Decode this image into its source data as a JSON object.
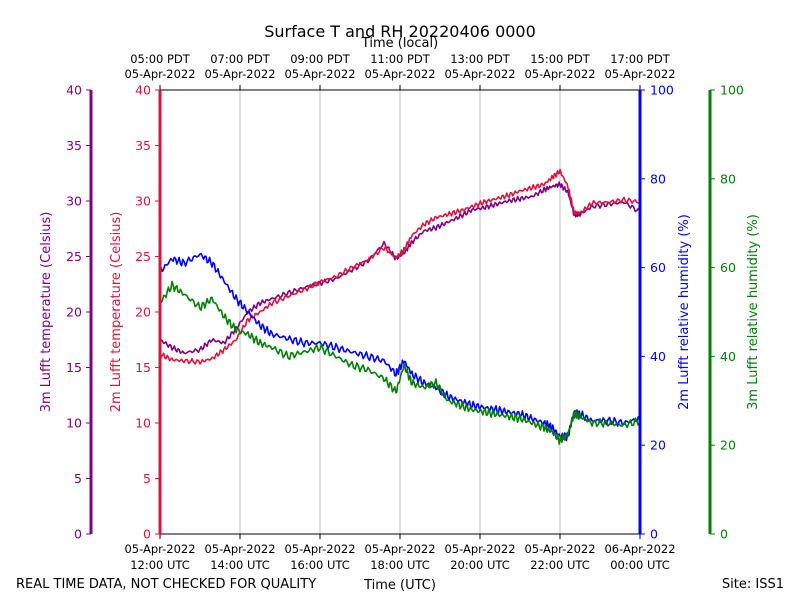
{
  "chart_data": {
    "type": "line",
    "title": "Surface T and RH 20220406 0000",
    "top_xlabel": "Time (local)",
    "bottom_xlabel": "Time (UTC)",
    "footer_left": "REAL TIME DATA, NOT CHECKED FOR QUALITY",
    "footer_right": "Site: ISS1",
    "x_hours_utc": [
      12,
      24
    ],
    "bottom_ticks": [
      {
        "h": 12,
        "date": "05-Apr-2022",
        "time": "12:00 UTC"
      },
      {
        "h": 14,
        "date": "05-Apr-2022",
        "time": "14:00 UTC"
      },
      {
        "h": 16,
        "date": "05-Apr-2022",
        "time": "16:00 UTC"
      },
      {
        "h": 18,
        "date": "05-Apr-2022",
        "time": "18:00 UTC"
      },
      {
        "h": 20,
        "date": "05-Apr-2022",
        "time": "20:00 UTC"
      },
      {
        "h": 22,
        "date": "05-Apr-2022",
        "time": "22:00 UTC"
      },
      {
        "h": 24,
        "date": "06-Apr-2022",
        "time": "00:00 UTC"
      }
    ],
    "top_ticks": [
      {
        "h": 12,
        "time": "05:00 PDT",
        "date": "05-Apr-2022"
      },
      {
        "h": 14,
        "time": "07:00 PDT",
        "date": "05-Apr-2022"
      },
      {
        "h": 16,
        "time": "09:00 PDT",
        "date": "05-Apr-2022"
      },
      {
        "h": 18,
        "time": "11:00 PDT",
        "date": "05-Apr-2022"
      },
      {
        "h": 20,
        "time": "13:00 PDT",
        "date": "05-Apr-2022"
      },
      {
        "h": 22,
        "time": "15:00 PDT",
        "date": "05-Apr-2022"
      },
      {
        "h": 24,
        "time": "17:00 PDT",
        "date": "05-Apr-2022"
      }
    ],
    "axes": {
      "t3m": {
        "label": "3m Lufft temperature (Celsius)",
        "color": "#800080",
        "ylim": [
          0,
          40
        ],
        "ticks": [
          "0",
          "5",
          "10",
          "15",
          "20",
          "25",
          "30",
          "35",
          "40"
        ]
      },
      "t2m": {
        "label": "2m Lufft temperature (Celsius)",
        "color": "#dc143c",
        "ylim": [
          0,
          40
        ],
        "ticks": [
          "0",
          "5",
          "10",
          "15",
          "20",
          "25",
          "30",
          "35",
          "40"
        ]
      },
      "rh2m": {
        "label": "2m Lufft relative humidity (%)",
        "color": "#0000ff",
        "ylim": [
          0,
          100
        ],
        "ticks": [
          "0",
          "20",
          "40",
          "60",
          "80",
          "100"
        ]
      },
      "rh3m": {
        "label": "3m Lufft relative humidity (%)",
        "color": "#008000",
        "ylim": [
          0,
          100
        ],
        "ticks": [
          "0",
          "20",
          "40",
          "60",
          "80",
          "100"
        ]
      }
    },
    "series": [
      {
        "name": "3m Lufft temperature",
        "axis": "t3m",
        "color": "#800080",
        "x": [
          12.0,
          12.3,
          12.6,
          13.0,
          13.3,
          13.6,
          13.9,
          14.2,
          14.5,
          14.8,
          15.2,
          15.6,
          16.0,
          16.4,
          16.8,
          17.2,
          17.6,
          17.9,
          18.1,
          18.3,
          18.6,
          18.9,
          19.2,
          19.5,
          19.8,
          20.1,
          20.4,
          20.7,
          21.0,
          21.3,
          21.6,
          21.8,
          22.0,
          22.2,
          22.35,
          22.5,
          22.8,
          23.2,
          23.6,
          24.0
        ],
        "values": [
          17.5,
          16.8,
          16.3,
          16.6,
          17.5,
          17.2,
          18.5,
          20.0,
          20.8,
          21.2,
          21.7,
          22.2,
          22.6,
          23.0,
          23.8,
          24.6,
          26.2,
          24.8,
          25.3,
          26.3,
          27.3,
          27.6,
          28.1,
          28.6,
          29.2,
          29.4,
          29.7,
          30.0,
          30.2,
          30.4,
          31.0,
          31.3,
          31.5,
          30.8,
          28.8,
          28.8,
          29.5,
          29.7,
          29.9,
          29.0
        ]
      },
      {
        "name": "2m Lufft temperature",
        "axis": "t2m",
        "color": "#dc143c",
        "x": [
          12.0,
          12.3,
          12.6,
          13.0,
          13.3,
          13.6,
          13.9,
          14.2,
          14.5,
          14.8,
          15.2,
          15.6,
          16.0,
          16.4,
          16.8,
          17.2,
          17.6,
          17.9,
          18.1,
          18.3,
          18.6,
          18.9,
          19.2,
          19.5,
          19.8,
          20.1,
          20.4,
          20.7,
          21.0,
          21.3,
          21.6,
          21.8,
          22.0,
          22.2,
          22.35,
          22.5,
          22.8,
          23.2,
          23.6,
          24.0
        ],
        "values": [
          16.2,
          15.7,
          15.6,
          15.5,
          15.8,
          16.6,
          17.5,
          19.3,
          20.0,
          20.8,
          21.4,
          22.0,
          22.7,
          23.2,
          24.0,
          24.7,
          25.8,
          24.9,
          25.6,
          26.9,
          27.9,
          28.5,
          28.8,
          29.1,
          29.5,
          29.9,
          30.2,
          30.5,
          30.9,
          31.2,
          31.5,
          32.1,
          32.7,
          31.3,
          29.0,
          28.9,
          29.8,
          29.9,
          30.1,
          29.9
        ]
      },
      {
        "name": "2m Lufft relative humidity",
        "axis": "rh2m",
        "color": "#0000ff",
        "x": [
          12.0,
          12.3,
          12.6,
          13.0,
          13.3,
          13.6,
          13.9,
          14.2,
          14.5,
          14.8,
          15.2,
          15.6,
          16.0,
          16.4,
          16.8,
          17.2,
          17.6,
          17.9,
          18.1,
          18.3,
          18.6,
          18.9,
          19.2,
          19.5,
          19.8,
          20.1,
          20.4,
          20.7,
          21.0,
          21.3,
          21.6,
          21.8,
          22.0,
          22.2,
          22.35,
          22.5,
          22.8,
          23.2,
          23.6,
          24.0
        ],
        "values": [
          59,
          62,
          61,
          63,
          61,
          57,
          53,
          50,
          47,
          45,
          44,
          43,
          43,
          42,
          41,
          40,
          39,
          36,
          39,
          36,
          34,
          33,
          31,
          30,
          29,
          28.5,
          28,
          27.5,
          27,
          26,
          25,
          24,
          22,
          22,
          27.5,
          27,
          25.5,
          25.5,
          25,
          26
        ]
      },
      {
        "name": "3m Lufft relative humidity",
        "axis": "rh3m",
        "color": "#008000",
        "x": [
          12.0,
          12.3,
          12.6,
          13.0,
          13.3,
          13.6,
          13.9,
          14.2,
          14.5,
          14.8,
          15.2,
          15.6,
          16.0,
          16.4,
          16.8,
          17.2,
          17.6,
          17.9,
          18.1,
          18.3,
          18.6,
          18.9,
          19.2,
          19.5,
          19.8,
          20.1,
          20.4,
          20.7,
          21.0,
          21.3,
          21.6,
          21.8,
          22.0,
          22.2,
          22.35,
          22.5,
          22.8,
          23.2,
          23.6,
          24.0
        ],
        "values": [
          52,
          56,
          54,
          51,
          53,
          49,
          46,
          45,
          43,
          42,
          40,
          41,
          42,
          40,
          38,
          37,
          35,
          32,
          38,
          34,
          33,
          34,
          30,
          29,
          28,
          27.5,
          27,
          26.5,
          26,
          25,
          24,
          23,
          21,
          22.5,
          27,
          26.5,
          25,
          25,
          24.5,
          25.5
        ]
      }
    ]
  }
}
